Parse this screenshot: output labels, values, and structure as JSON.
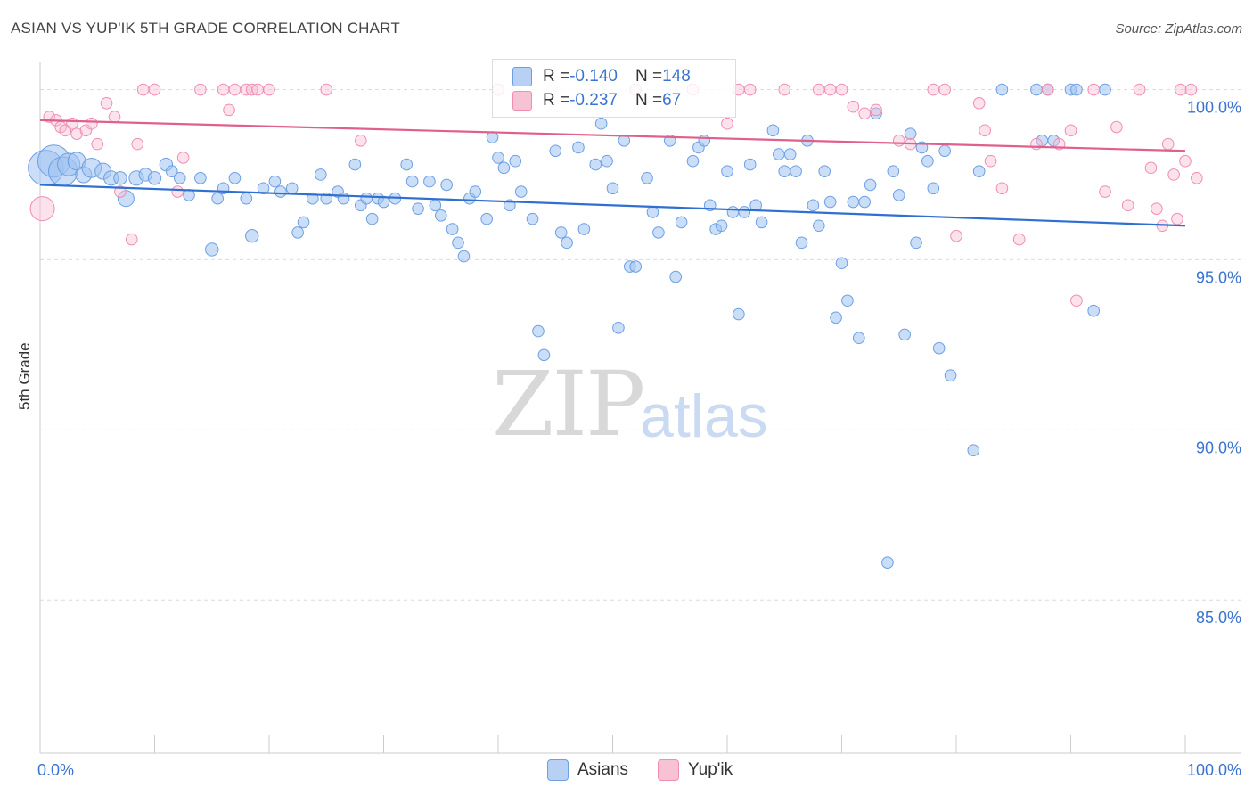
{
  "title": "ASIAN VS YUP'IK 5TH GRADE CORRELATION CHART",
  "source": "Source: ZipAtlas.com",
  "watermark": {
    "zip": "ZIP",
    "atlas": "atlas"
  },
  "legend": {
    "rows": [
      {
        "r_label": "R = ",
        "r_value": "-0.140",
        "n_label": "N = ",
        "n_value": "148"
      },
      {
        "r_label": "R = ",
        "r_value": "-0.237",
        "n_label": "N = ",
        "n_value": "67"
      }
    ]
  },
  "bottom_legend": [
    "Asians",
    "Yup'ik"
  ],
  "colors": {
    "asians": "#6d9fe3",
    "yupik": "#f08db0",
    "asians_line": "#2f6fd0",
    "yupik_line": "#e0608d",
    "tick_text": "#3a73d0"
  },
  "chart_data": {
    "type": "scatter",
    "ylabel": "5th Grade",
    "xlabel": "",
    "x_ticks": [
      "0.0%",
      "100.0%"
    ],
    "y_ticks": [
      "100.0%",
      "95.0%",
      "90.0%",
      "85.0%"
    ],
    "xlim": [
      0,
      100
    ],
    "ylim": [
      80.5,
      100.8
    ],
    "grid": true,
    "legend_position": "top-center",
    "series": [
      {
        "name": "Asians",
        "trend": [
          [
            0,
            97.2
          ],
          [
            100,
            96.0
          ]
        ],
        "points": [
          [
            0.5,
            97.7,
            2.2
          ],
          [
            1.2,
            97.9,
            2
          ],
          [
            2,
            97.6,
            1.8
          ],
          [
            2.5,
            97.8,
            1.4
          ],
          [
            3.2,
            97.9,
            1.1
          ],
          [
            3.8,
            97.5,
            1
          ],
          [
            4.5,
            97.7,
            1.2
          ],
          [
            5.5,
            97.6,
            1
          ],
          [
            6.2,
            97.4,
            0.9
          ],
          [
            7,
            97.4,
            0.8
          ],
          [
            7.5,
            96.8,
            1
          ],
          [
            8.4,
            97.4,
            0.9
          ],
          [
            9.2,
            97.5,
            0.8
          ],
          [
            10,
            97.4,
            0.8
          ],
          [
            11,
            97.8,
            0.8
          ],
          [
            11.5,
            97.6,
            0.7
          ],
          [
            12.2,
            97.4,
            0.7
          ],
          [
            13,
            96.9,
            0.7
          ],
          [
            14,
            97.4,
            0.7
          ],
          [
            15,
            95.3,
            0.8
          ],
          [
            15.5,
            96.8,
            0.7
          ],
          [
            16,
            97.1,
            0.7
          ],
          [
            17,
            97.4,
            0.7
          ],
          [
            18,
            96.8,
            0.7
          ],
          [
            18.5,
            95.7,
            0.8
          ],
          [
            19.5,
            97.1,
            0.7
          ],
          [
            20.5,
            97.3,
            0.7
          ],
          [
            21,
            97.0,
            0.7
          ],
          [
            22,
            97.1,
            0.7
          ],
          [
            22.5,
            95.8,
            0.7
          ],
          [
            23,
            96.1,
            0.7
          ],
          [
            23.8,
            96.8,
            0.7
          ],
          [
            24.5,
            97.5,
            0.7
          ],
          [
            25,
            96.8,
            0.7
          ],
          [
            26,
            97.0,
            0.7
          ],
          [
            26.5,
            96.8,
            0.7
          ],
          [
            27.5,
            97.8,
            0.7
          ],
          [
            28,
            96.6,
            0.7
          ],
          [
            28.5,
            96.8,
            0.7
          ],
          [
            29,
            96.2,
            0.7
          ],
          [
            29.5,
            96.8,
            0.7
          ],
          [
            30,
            96.7,
            0.7
          ],
          [
            31,
            96.8,
            0.7
          ],
          [
            32,
            97.8,
            0.7
          ],
          [
            32.5,
            97.3,
            0.7
          ],
          [
            33,
            96.5,
            0.7
          ],
          [
            34,
            97.3,
            0.7
          ],
          [
            34.5,
            96.6,
            0.7
          ],
          [
            35,
            96.3,
            0.7
          ],
          [
            35.5,
            97.2,
            0.7
          ],
          [
            36,
            95.9,
            0.7
          ],
          [
            36.5,
            95.5,
            0.7
          ],
          [
            37,
            95.1,
            0.7
          ],
          [
            37.5,
            96.8,
            0.7
          ],
          [
            38,
            97.0,
            0.7
          ],
          [
            39,
            96.2,
            0.7
          ],
          [
            39.5,
            98.6,
            0.7
          ],
          [
            40,
            98.0,
            0.7
          ],
          [
            40.5,
            97.7,
            0.7
          ],
          [
            41,
            96.6,
            0.7
          ],
          [
            41.5,
            97.9,
            0.7
          ],
          [
            42,
            97.0,
            0.7
          ],
          [
            43,
            96.2,
            0.7
          ],
          [
            43.5,
            92.9,
            0.7
          ],
          [
            44,
            92.2,
            0.7
          ],
          [
            45,
            98.2,
            0.7
          ],
          [
            45.5,
            95.8,
            0.7
          ],
          [
            46,
            95.5,
            0.7
          ],
          [
            47,
            98.3,
            0.7
          ],
          [
            47.5,
            95.9,
            0.7
          ],
          [
            48.5,
            97.8,
            0.7
          ],
          [
            49,
            99.0,
            0.7
          ],
          [
            49.5,
            97.9,
            0.7
          ],
          [
            50,
            97.1,
            0.7
          ],
          [
            50.5,
            93.0,
            0.7
          ],
          [
            51,
            98.5,
            0.7
          ],
          [
            51.5,
            94.8,
            0.7
          ],
          [
            52,
            94.8,
            0.7
          ],
          [
            53,
            97.4,
            0.7
          ],
          [
            53.5,
            96.4,
            0.7
          ],
          [
            54,
            95.8,
            0.7
          ],
          [
            55,
            98.5,
            0.7
          ],
          [
            55.5,
            94.5,
            0.7
          ],
          [
            56,
            96.1,
            0.7
          ],
          [
            57,
            97.9,
            0.7
          ],
          [
            57.5,
            98.3,
            0.7
          ],
          [
            58,
            98.5,
            0.7
          ],
          [
            58.5,
            96.6,
            0.7
          ],
          [
            59,
            95.9,
            0.7
          ],
          [
            59.5,
            96.0,
            0.7
          ],
          [
            60,
            97.6,
            0.7
          ],
          [
            60.5,
            96.4,
            0.7
          ],
          [
            61,
            93.4,
            0.7
          ],
          [
            61.5,
            96.4,
            0.7
          ],
          [
            62,
            97.8,
            0.7
          ],
          [
            62.5,
            96.6,
            0.7
          ],
          [
            63,
            96.1,
            0.7
          ],
          [
            64,
            98.8,
            0.7
          ],
          [
            64.5,
            98.1,
            0.7
          ],
          [
            65,
            97.6,
            0.7
          ],
          [
            65.5,
            98.1,
            0.7
          ],
          [
            66,
            97.6,
            0.7
          ],
          [
            66.5,
            95.5,
            0.7
          ],
          [
            67,
            98.5,
            0.7
          ],
          [
            67.5,
            96.6,
            0.7
          ],
          [
            68,
            96.0,
            0.7
          ],
          [
            68.5,
            97.6,
            0.7
          ],
          [
            69,
            96.7,
            0.7
          ],
          [
            69.5,
            93.3,
            0.7
          ],
          [
            70,
            94.9,
            0.7
          ],
          [
            70.5,
            93.8,
            0.7
          ],
          [
            71,
            96.7,
            0.7
          ],
          [
            71.5,
            92.7,
            0.7
          ],
          [
            72,
            96.7,
            0.7
          ],
          [
            72.5,
            97.2,
            0.7
          ],
          [
            73,
            99.3,
            0.7
          ],
          [
            74,
            86.1,
            0.7
          ],
          [
            74.5,
            97.6,
            0.7
          ],
          [
            75,
            96.9,
            0.7
          ],
          [
            75.5,
            92.8,
            0.7
          ],
          [
            76,
            98.7,
            0.7
          ],
          [
            76.5,
            95.5,
            0.7
          ],
          [
            77,
            98.3,
            0.7
          ],
          [
            77.5,
            97.9,
            0.7
          ],
          [
            78,
            97.1,
            0.7
          ],
          [
            78.5,
            92.4,
            0.7
          ],
          [
            79,
            98.2,
            0.7
          ],
          [
            79.5,
            91.6,
            0.7
          ],
          [
            81.5,
            89.4,
            0.7
          ],
          [
            82,
            97.6,
            0.7
          ],
          [
            84,
            100.0,
            0.7
          ],
          [
            87,
            100.0,
            0.7
          ],
          [
            87.5,
            98.5,
            0.7
          ],
          [
            88,
            100.0,
            0.7
          ],
          [
            88.5,
            98.5,
            0.7
          ],
          [
            90,
            100.0,
            0.7
          ],
          [
            90.5,
            100.0,
            0.7
          ],
          [
            92,
            93.5,
            0.7
          ],
          [
            93,
            100.0,
            0.7
          ]
        ]
      },
      {
        "name": "Yup'ik",
        "trend": [
          [
            0,
            99.1
          ],
          [
            100,
            98.2
          ]
        ],
        "points": [
          [
            0.2,
            96.5,
            1.5
          ],
          [
            0.8,
            99.2,
            0.7
          ],
          [
            1.4,
            99.1,
            0.7
          ],
          [
            1.8,
            98.9,
            0.7
          ],
          [
            2.2,
            98.8,
            0.7
          ],
          [
            2.8,
            99.0,
            0.7
          ],
          [
            3.2,
            98.7,
            0.7
          ],
          [
            4,
            98.8,
            0.7
          ],
          [
            4.5,
            99.0,
            0.7
          ],
          [
            5,
            98.4,
            0.7
          ],
          [
            5.8,
            99.6,
            0.7
          ],
          [
            6.5,
            99.2,
            0.7
          ],
          [
            7,
            97.0,
            0.7
          ],
          [
            8,
            95.6,
            0.7
          ],
          [
            8.5,
            98.4,
            0.7
          ],
          [
            9,
            100.0,
            0.7
          ],
          [
            10,
            100.0,
            0.7
          ],
          [
            12,
            97.0,
            0.7
          ],
          [
            12.5,
            98.0,
            0.7
          ],
          [
            14,
            100.0,
            0.7
          ],
          [
            16,
            100.0,
            0.7
          ],
          [
            16.5,
            99.4,
            0.7
          ],
          [
            17,
            100.0,
            0.7
          ],
          [
            18,
            100.0,
            0.7
          ],
          [
            18.5,
            100.0,
            0.7
          ],
          [
            19,
            100.0,
            0.7
          ],
          [
            20,
            100.0,
            0.7
          ],
          [
            25,
            100.0,
            0.7
          ],
          [
            28,
            98.5,
            0.7
          ],
          [
            40,
            100.0,
            0.7
          ],
          [
            52,
            100.0,
            0.7
          ],
          [
            57,
            100.0,
            0.7
          ],
          [
            60,
            99.0,
            0.7
          ],
          [
            61,
            100.0,
            0.7
          ],
          [
            62,
            100.0,
            0.7
          ],
          [
            65,
            100.0,
            0.7
          ],
          [
            68,
            100.0,
            0.7
          ],
          [
            69,
            100.0,
            0.7
          ],
          [
            70,
            100.0,
            0.7
          ],
          [
            71,
            99.5,
            0.7
          ],
          [
            72,
            99.3,
            0.7
          ],
          [
            73,
            99.4,
            0.7
          ],
          [
            75,
            98.5,
            0.7
          ],
          [
            76,
            98.4,
            0.7
          ],
          [
            78,
            100.0,
            0.7
          ],
          [
            79,
            100.0,
            0.7
          ],
          [
            80,
            95.7,
            0.7
          ],
          [
            82,
            99.6,
            0.7
          ],
          [
            82.5,
            98.8,
            0.7
          ],
          [
            83,
            97.9,
            0.7
          ],
          [
            84,
            97.1,
            0.7
          ],
          [
            85.5,
            95.6,
            0.7
          ],
          [
            87,
            98.4,
            0.7
          ],
          [
            88,
            100.0,
            0.7
          ],
          [
            89,
            98.4,
            0.7
          ],
          [
            90,
            98.8,
            0.7
          ],
          [
            90.5,
            93.8,
            0.7
          ],
          [
            92,
            100.0,
            0.7
          ],
          [
            93,
            97.0,
            0.7
          ],
          [
            94,
            98.9,
            0.7
          ],
          [
            95,
            96.6,
            0.7
          ],
          [
            96,
            100.0,
            0.7
          ],
          [
            97,
            97.7,
            0.7
          ],
          [
            97.5,
            96.5,
            0.7
          ],
          [
            98,
            96.0,
            0.7
          ],
          [
            98.5,
            98.4,
            0.7
          ],
          [
            99,
            97.5,
            0.7
          ],
          [
            99.3,
            96.2,
            0.7
          ],
          [
            99.6,
            100.0,
            0.7
          ],
          [
            100,
            97.9,
            0.7
          ],
          [
            100.5,
            100.0,
            0.7
          ],
          [
            101,
            97.4,
            0.7
          ]
        ]
      }
    ]
  }
}
